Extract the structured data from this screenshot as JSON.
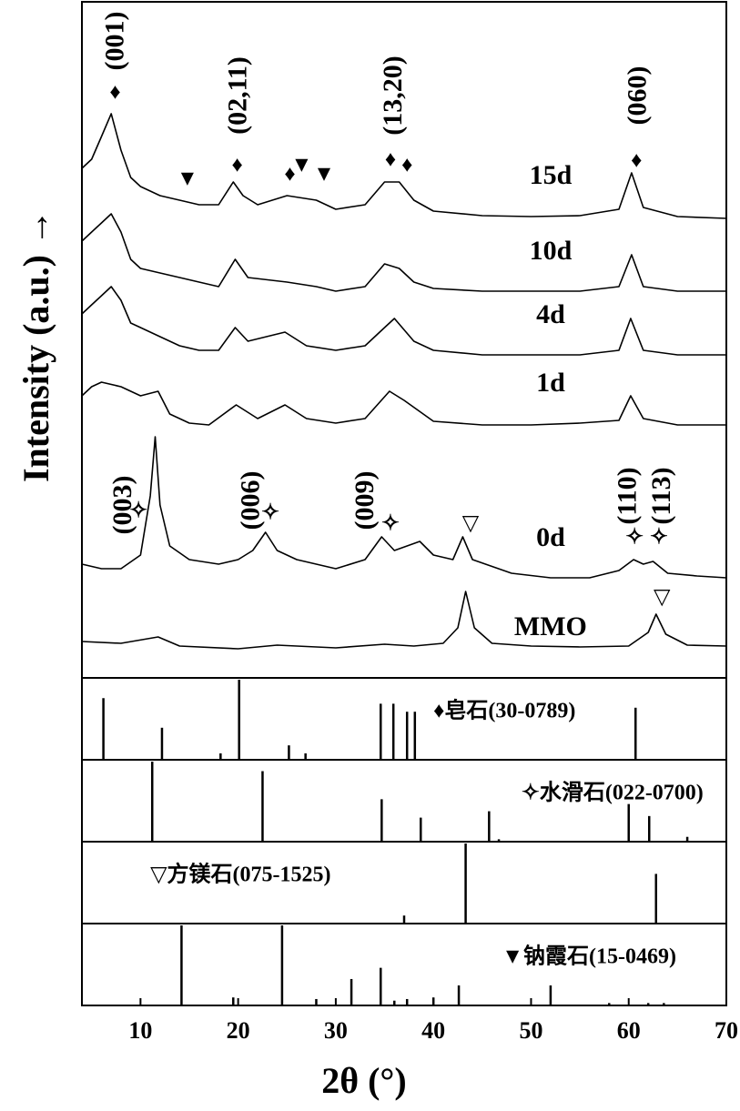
{
  "chart_data": {
    "type": "line",
    "x_label": "2θ (°)",
    "y_label": "Intensity (a.u.) →",
    "xlim": [
      4,
      70
    ],
    "xticks": [
      10,
      20,
      30,
      40,
      50,
      60,
      70
    ],
    "ylim": [
      0,
      743
    ],
    "series": [
      {
        "name": "15d",
        "color": "#000000",
        "x": [
          4,
          5,
          6,
          7,
          8,
          9,
          10,
          12,
          14,
          16,
          18,
          19.5,
          20.5,
          22,
          25,
          28,
          30,
          33,
          35,
          36.5,
          38,
          40,
          45,
          50,
          55,
          59,
          60.3,
          61.5,
          65,
          70
        ],
        "values": [
          560,
          570,
          595,
          620,
          580,
          550,
          540,
          530,
          525,
          520,
          520,
          545,
          530,
          520,
          530,
          525,
          515,
          520,
          545,
          545,
          525,
          513,
          508,
          507,
          508,
          515,
          555,
          517,
          507,
          505
        ]
      },
      {
        "name": "10d",
        "color": "#000000",
        "x": [
          4,
          5,
          6,
          7,
          8,
          9,
          10,
          12,
          14,
          16,
          18,
          19.7,
          21,
          25,
          28,
          30,
          33,
          35,
          36.5,
          38,
          40,
          45,
          50,
          55,
          59,
          60.3,
          61.5,
          65,
          70
        ],
        "values": [
          480,
          490,
          500,
          510,
          490,
          460,
          450,
          445,
          440,
          435,
          430,
          460,
          440,
          435,
          430,
          425,
          430,
          455,
          450,
          435,
          428,
          425,
          425,
          425,
          430,
          465,
          430,
          425,
          425
        ]
      },
      {
        "name": "4d",
        "color": "#000000",
        "x": [
          4,
          5,
          6,
          7,
          8,
          9,
          10,
          12,
          14,
          16,
          18,
          19.7,
          21,
          24.8,
          27,
          30,
          33,
          35,
          36,
          38,
          40,
          45,
          50,
          55,
          59,
          60.2,
          61.5,
          65,
          70
        ],
        "values": [
          400,
          410,
          420,
          430,
          415,
          390,
          385,
          375,
          365,
          360,
          360,
          385,
          370,
          380,
          365,
          360,
          365,
          385,
          395,
          370,
          360,
          355,
          355,
          355,
          360,
          395,
          360,
          355,
          355
        ]
      },
      {
        "name": "1d",
        "color": "#000000",
        "x": [
          4,
          5,
          6,
          8,
          10,
          11.8,
          13,
          15,
          17,
          19.8,
          22,
          24.8,
          27,
          30,
          33,
          35.5,
          37,
          40,
          45,
          50,
          55,
          59,
          60.2,
          61.5,
          65,
          70
        ],
        "values": [
          310,
          320,
          325,
          320,
          310,
          315,
          290,
          280,
          278,
          300,
          285,
          300,
          285,
          280,
          285,
          315,
          305,
          282,
          278,
          278,
          280,
          283,
          310,
          285,
          278,
          278
        ]
      },
      {
        "name": "0d",
        "color": "#000000",
        "x": [
          4,
          6,
          8,
          10,
          11,
          11.5,
          12,
          13,
          15,
          18,
          20,
          21.5,
          22.8,
          24,
          26,
          30,
          33,
          34.7,
          36,
          38.6,
          40,
          42,
          43,
          44,
          48,
          52,
          56,
          59,
          60.5,
          61.5,
          62.5,
          64,
          67,
          70
        ],
        "values": [
          125,
          120,
          120,
          135,
          200,
          265,
          190,
          145,
          130,
          125,
          130,
          140,
          160,
          140,
          130,
          120,
          130,
          155,
          140,
          150,
          135,
          130,
          155,
          130,
          115,
          110,
          110,
          118,
          130,
          125,
          128,
          115,
          112,
          110
        ]
      },
      {
        "name": "MMO",
        "color": "#000000",
        "x": [
          4,
          8,
          11.8,
          14,
          20,
          24,
          30,
          35,
          38,
          41,
          42.5,
          43.3,
          44.2,
          46,
          50,
          55,
          60,
          62,
          62.8,
          63.8,
          66,
          70
        ],
        "values": [
          40,
          38,
          45,
          35,
          32,
          36,
          33,
          37,
          35,
          38,
          55,
          95,
          55,
          38,
          35,
          34,
          35,
          50,
          70,
          48,
          36,
          35
        ]
      }
    ],
    "annotations": [
      "(001)",
      "♦",
      "(02,11)",
      "♦",
      "(13,20)",
      "♦",
      "♦",
      "(060)",
      "♦",
      "▼",
      "♦",
      "▼",
      "▼",
      "(003)",
      "✧",
      "(006)",
      "✧",
      "(009)",
      "✧",
      "▽",
      "(110)",
      "✧",
      "(113)",
      "✧",
      "▽"
    ],
    "reference_ylim": [
      0,
      100
    ],
    "references": [
      {
        "name": "♦皂石(30-0789)",
        "positions": [
          6.2,
          12.2,
          18.2,
          20.1,
          25.2,
          26.9,
          34.6,
          35.9,
          37.3,
          38.1,
          60.7
        ],
        "intensities": [
          77,
          40,
          8,
          100,
          18,
          8,
          70,
          70,
          60,
          60,
          65
        ]
      },
      {
        "name": "✧水滑石(022-0700)",
        "positions": [
          11.2,
          22.5,
          34.7,
          38.7,
          45.7,
          46.7,
          60.0,
          62.1,
          66.0
        ],
        "intensities": [
          100,
          88,
          53,
          30,
          38,
          3,
          47,
          32,
          6
        ]
      },
      {
        "name": "▽方镁石(075-1525)",
        "positions": [
          37.0,
          43.3,
          62.8
        ],
        "intensities": [
          10,
          100,
          62
        ]
      },
      {
        "name": "▼钠霞石(15-0469)",
        "positions": [
          14.2,
          19.5,
          24.5,
          28.0,
          31.6,
          34.6,
          36.0,
          37.3,
          40.0,
          42.6,
          52.0,
          58.0,
          62.0,
          63.6
        ],
        "intensities": [
          100,
          10,
          100,
          8,
          33,
          47,
          6,
          8,
          10,
          25,
          25,
          3,
          3,
          3
        ]
      }
    ]
  }
}
